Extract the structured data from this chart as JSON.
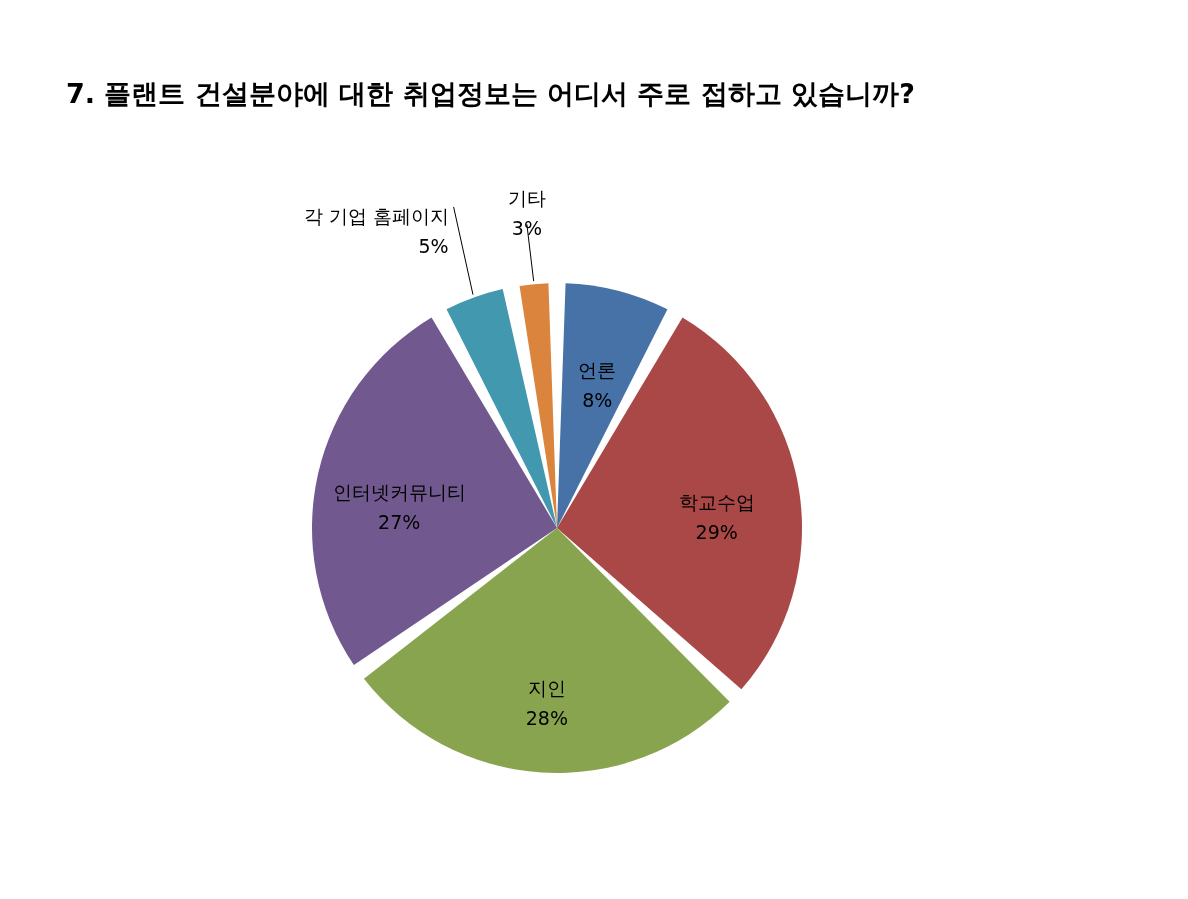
{
  "chart_data": {
    "type": "pie",
    "title": "7. 플랜트 건설분야에 대한 취업정보는 어디서 주로 접하고 있습니까?",
    "categories": [
      "언론",
      "학교수업",
      "지인",
      "인터넷커뮤니티",
      "각 기업 홈페이지",
      "기타"
    ],
    "values": [
      8,
      29,
      28,
      27,
      5,
      3
    ],
    "value_labels": [
      "8%",
      "29%",
      "28%",
      "27%",
      "5%",
      "3%"
    ],
    "colors": [
      "#4672a8",
      "#a94846",
      "#89a44e",
      "#71588f",
      "#4298af",
      "#db843d"
    ]
  }
}
